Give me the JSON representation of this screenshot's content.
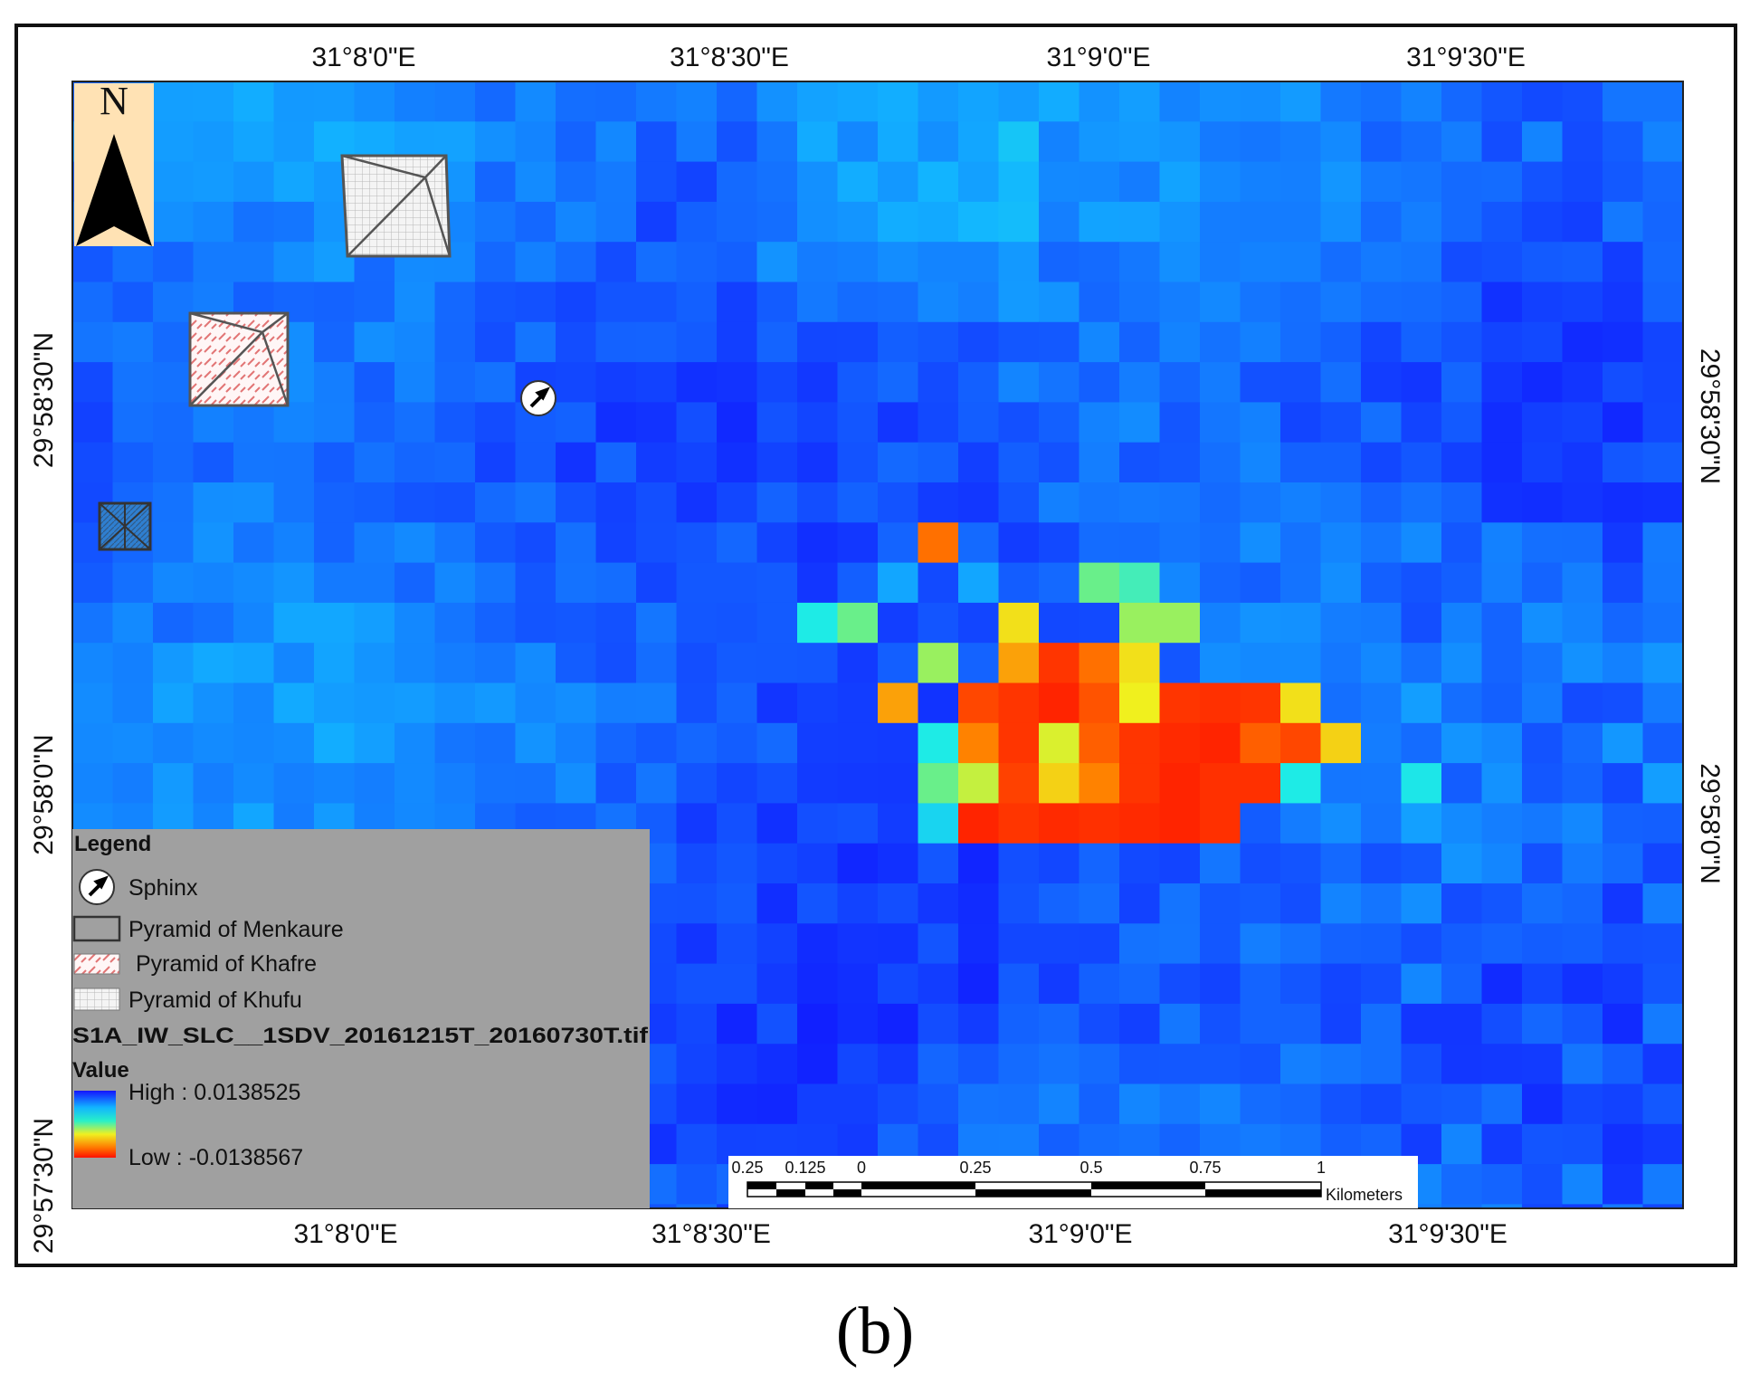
{
  "panel_label": "(b)",
  "north_arrow": {
    "label": "N"
  },
  "coords": {
    "top": [
      "31°8'0\"E",
      "31°8'30\"E",
      "31°9'0\"E",
      "31°9'30\"E"
    ],
    "bottom": [
      "31°8'0\"E",
      "31°8'30\"E",
      "31°9'0\"E",
      "31°9'30\"E"
    ],
    "left": [
      "29°58'30\"N",
      "29°58'0\"N",
      "29°57'30\"N"
    ],
    "right": [
      "29°58'30\"N",
      "29°58'0\"N"
    ]
  },
  "legend": {
    "title": "Legend",
    "items": [
      {
        "label": "Sphinx",
        "symbol": "sphinx-icon"
      },
      {
        "label": "Pyramid of Menkaure",
        "symbol": "outline-box"
      },
      {
        "label": "Pyramid of Khafre",
        "symbol": "red-hatch-box"
      },
      {
        "label": "Pyramid of Khufu",
        "symbol": "grid-box"
      }
    ],
    "raster_name": "S1A_IW_SLC__1SDV_20161215T_20160730T.tif",
    "value_title": "Value",
    "high": "High : 0.0138525",
    "low": "Low : -0.0138567"
  },
  "scale_bar": {
    "labels": [
      "0.25",
      "0.125",
      "0",
      "0.25",
      "0.5",
      "0.75",
      "1"
    ],
    "unit": "Kilometers"
  },
  "colors": {
    "background_blue": "#1188f0",
    "deformation_low": "#ff2000",
    "deformation_high": "#1020ff",
    "legend_panel": "#a0a0a0",
    "north_panel": "#ffe2b4"
  }
}
